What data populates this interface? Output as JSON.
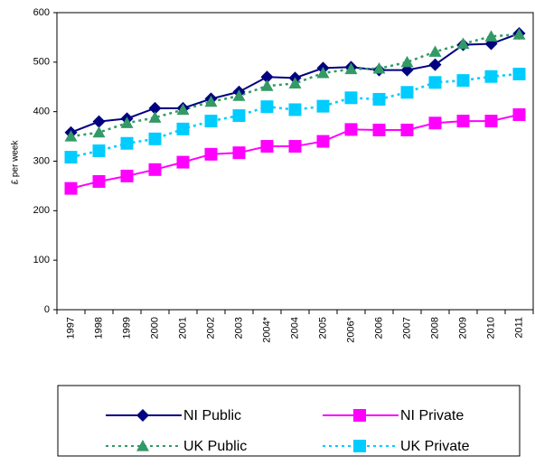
{
  "chart_data": {
    "type": "line",
    "y_label": "£ per week",
    "categories": [
      "1997",
      "1998",
      "1999",
      "2000",
      "2001",
      "2002",
      "2003",
      "2004*",
      "2004",
      "2005",
      "2006*",
      "2006",
      "2007",
      "2008",
      "2009",
      "2010",
      "2011"
    ],
    "series": [
      {
        "name": "NI Public",
        "color": "#000080",
        "marker": "diamond",
        "dashed": false,
        "values": [
          358,
          380,
          386,
          407,
          407,
          426,
          440,
          470,
          468,
          488,
          490,
          484,
          484,
          495,
          535,
          537,
          558
        ]
      },
      {
        "name": "NI Private",
        "color": "#ff00ff",
        "marker": "square",
        "dashed": false,
        "values": [
          245,
          259,
          270,
          283,
          298,
          314,
          317,
          330,
          330,
          340,
          364,
          363,
          363,
          377,
          381,
          381,
          394
        ]
      },
      {
        "name": "UK Public",
        "color": "#339966",
        "marker": "triangle",
        "dashed": true,
        "values": [
          350,
          358,
          377,
          388,
          404,
          420,
          432,
          452,
          457,
          478,
          486,
          487,
          500,
          521,
          537,
          552,
          556
        ]
      },
      {
        "name": "UK Private",
        "color": "#00ccff",
        "marker": "square",
        "dashed": true,
        "values": [
          308,
          321,
          336,
          345,
          365,
          381,
          392,
          410,
          404,
          411,
          428,
          425,
          439,
          459,
          463,
          471,
          476
        ]
      }
    ],
    "ylim": [
      0,
      600
    ],
    "yticks": [
      0,
      100,
      200,
      300,
      400,
      500,
      600
    ],
    "grid": false
  }
}
